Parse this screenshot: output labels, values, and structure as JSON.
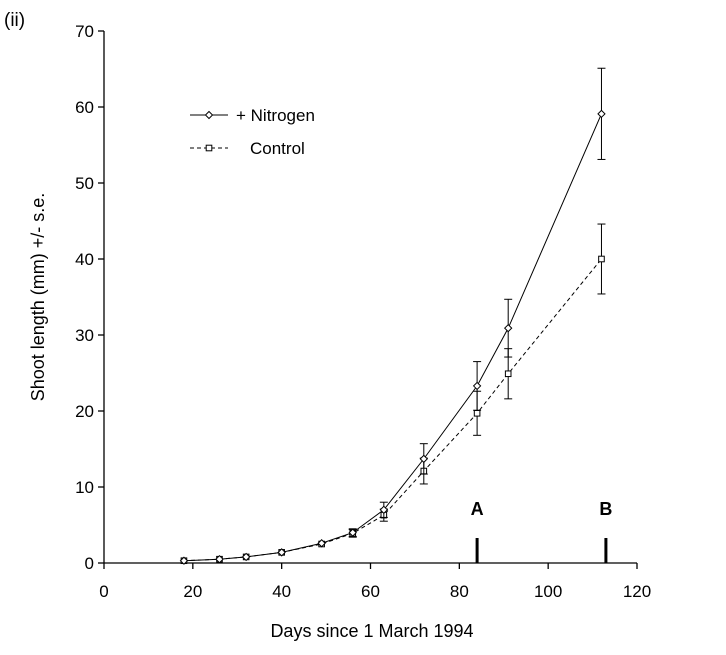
{
  "panel_label": "(ii)",
  "chart_data": {
    "type": "line",
    "title": "",
    "xlabel": "Days since 1 March 1994",
    "ylabel": "Shoot length (mm) +/- s.e.",
    "xlim": [
      0,
      120
    ],
    "ylim": [
      0,
      70
    ],
    "xticks": [
      0,
      20,
      40,
      60,
      80,
      100,
      120
    ],
    "yticks": [
      0,
      10,
      20,
      30,
      40,
      50,
      60,
      70
    ],
    "grid": false,
    "legend_position": "top-left",
    "series": [
      {
        "name": "+ Nitrogen",
        "marker": "diamond",
        "line_style": "solid",
        "x": [
          18,
          26,
          32,
          40,
          49,
          56,
          63,
          72,
          84,
          91,
          112
        ],
        "y": [
          0.3,
          0.5,
          0.8,
          1.4,
          2.6,
          4.0,
          7.0,
          13.7,
          23.3,
          30.9,
          59.1
        ],
        "se": [
          0.1,
          0.1,
          0.1,
          0.2,
          0.3,
          0.5,
          1.0,
          2.0,
          3.2,
          3.8,
          6.0
        ]
      },
      {
        "name": "Control",
        "marker": "square",
        "line_style": "dashed",
        "x": [
          18,
          26,
          32,
          40,
          49,
          56,
          63,
          72,
          84,
          91,
          112
        ],
        "y": [
          0.3,
          0.5,
          0.8,
          1.4,
          2.5,
          3.9,
          6.3,
          12.1,
          19.7,
          24.9,
          40.0
        ],
        "se": [
          0.1,
          0.1,
          0.1,
          0.2,
          0.3,
          0.5,
          0.8,
          1.7,
          2.9,
          3.3,
          4.6
        ]
      }
    ],
    "annotations": [
      {
        "label": "A",
        "x": 84
      },
      {
        "label": "B",
        "x": 113
      }
    ]
  }
}
